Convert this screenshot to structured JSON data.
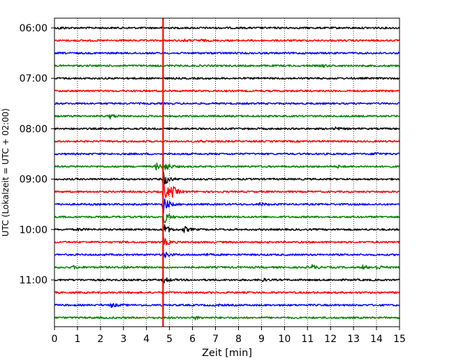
{
  "chart_data": {
    "type": "line",
    "title": "",
    "xlabel": "Zeit  [min]",
    "ylabel": "UTC (Lokalzeit = UTC + 02:00)",
    "xlim": [
      0,
      15
    ],
    "x_ticks": [
      0,
      1,
      2,
      3,
      4,
      5,
      6,
      7,
      8,
      9,
      10,
      11,
      12,
      13,
      14,
      15
    ],
    "x_tick_labels": [
      "0",
      "1",
      "2",
      "3",
      "4",
      "5",
      "6",
      "7",
      "8",
      "9",
      "10",
      "11",
      "12",
      "13",
      "14",
      "15"
    ],
    "y_tick_labels": [
      "06:00",
      "07:00",
      "08:00",
      "09:00",
      "10:00",
      "11:00"
    ],
    "y_tick_traces": [
      0,
      4,
      8,
      12,
      16,
      20
    ],
    "trace_count": 24,
    "trace_colors": [
      "#000000",
      "#ff0000",
      "#0000ff",
      "#008000"
    ],
    "grid": true,
    "marker_line": {
      "x": 4.72,
      "color": "#ff0000"
    },
    "events": [
      {
        "trace": 0,
        "x": 0.2,
        "amp": 1.6
      },
      {
        "trace": 1,
        "x": 5.6,
        "amp": 1.4
      },
      {
        "trace": 1,
        "x": 6.3,
        "amp": 1.6
      },
      {
        "trace": 3,
        "x": 11.6,
        "amp": 2.0
      },
      {
        "trace": 7,
        "x": 2.4,
        "amp": 3.5
      },
      {
        "trace": 8,
        "x": 12.2,
        "amp": 2.0
      },
      {
        "trace": 9,
        "x": 6.3,
        "amp": 1.8
      },
      {
        "trace": 10,
        "x": 13.9,
        "amp": 2.5
      },
      {
        "trace": 11,
        "x": 4.4,
        "amp": 5.0
      },
      {
        "trace": 11,
        "x": 4.72,
        "amp": 10.0
      },
      {
        "trace": 11,
        "x": 12.3,
        "amp": 1.5
      },
      {
        "trace": 12,
        "x": 4.72,
        "amp": 12.0
      },
      {
        "trace": 13,
        "x": 4.72,
        "amp": 16.0
      },
      {
        "trace": 13,
        "x": 5.1,
        "amp": 8.0
      },
      {
        "trace": 14,
        "x": 4.72,
        "amp": 14.0
      },
      {
        "trace": 14,
        "x": 8.9,
        "amp": 2.5
      },
      {
        "trace": 15,
        "x": 4.72,
        "amp": 12.0
      },
      {
        "trace": 16,
        "x": 4.72,
        "amp": 10.0
      },
      {
        "trace": 16,
        "x": 5.6,
        "amp": 5.0
      },
      {
        "trace": 16,
        "x": 1.0,
        "amp": 2.0
      },
      {
        "trace": 17,
        "x": 4.72,
        "amp": 7.0
      },
      {
        "trace": 18,
        "x": 4.72,
        "amp": 6.0
      },
      {
        "trace": 18,
        "x": 6.5,
        "amp": 2.0
      },
      {
        "trace": 19,
        "x": 11.2,
        "amp": 3.5
      },
      {
        "trace": 19,
        "x": 13.4,
        "amp": 3.0
      },
      {
        "trace": 19,
        "x": 14.0,
        "amp": 3.0
      },
      {
        "trace": 19,
        "x": 3.0,
        "amp": 2.0
      },
      {
        "trace": 19,
        "x": 0.8,
        "amp": 2.0
      },
      {
        "trace": 20,
        "x": 4.72,
        "amp": 5.0
      },
      {
        "trace": 20,
        "x": 9.0,
        "amp": 2.0
      },
      {
        "trace": 22,
        "x": 2.45,
        "amp": 3.5
      },
      {
        "trace": 22,
        "x": 7.0,
        "amp": 1.6
      },
      {
        "trace": 23,
        "x": 6.1,
        "amp": 2.2
      }
    ]
  }
}
